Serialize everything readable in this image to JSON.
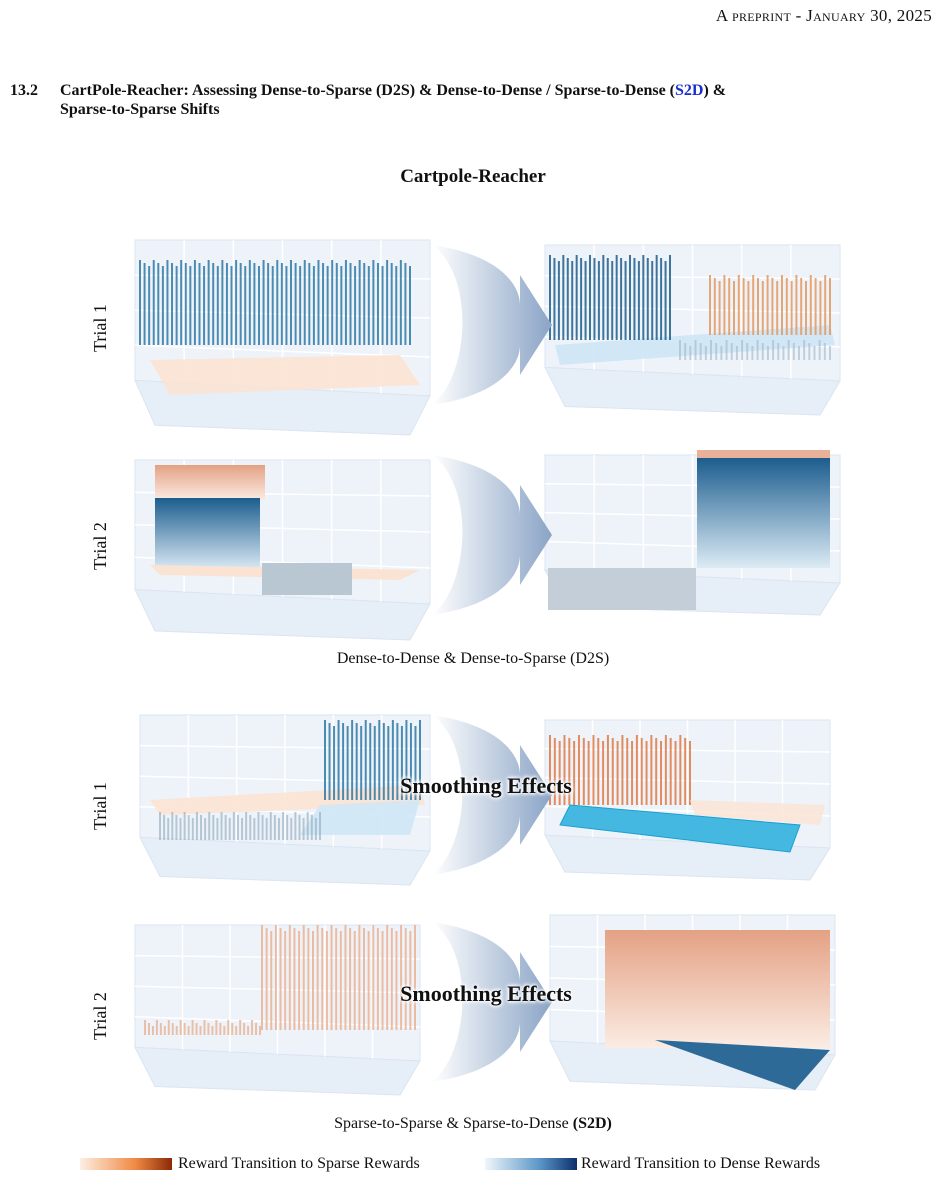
{
  "header": "A preprint - January 30, 2025",
  "section": {
    "number": "13.2",
    "title_parts": [
      "CartPole-Reacher: Assessing Dense-to-Sparse (D2S) & Dense-to-Dense / Sparse-to-Dense (",
      "S2D",
      ") &",
      "Sparse-to-Sparse Shifts"
    ]
  },
  "figure": {
    "title": "Cartpole-Reacher",
    "groups": [
      {
        "rows": [
          "Trial 1",
          "Trial 2"
        ],
        "caption": "Dense-to-Dense & Dense-to-Sparse (D2S)"
      },
      {
        "rows": [
          "Trial 1",
          "Trial 2"
        ],
        "annotation": "Smoothing Effects",
        "caption_parts": [
          "Sparse-to-Sparse & Sparse-to-Dense ",
          "(S2D)"
        ]
      }
    ],
    "legend": [
      "Reward Transition to Sparse Rewards",
      "Reward Transition to Dense Rewards"
    ]
  }
}
